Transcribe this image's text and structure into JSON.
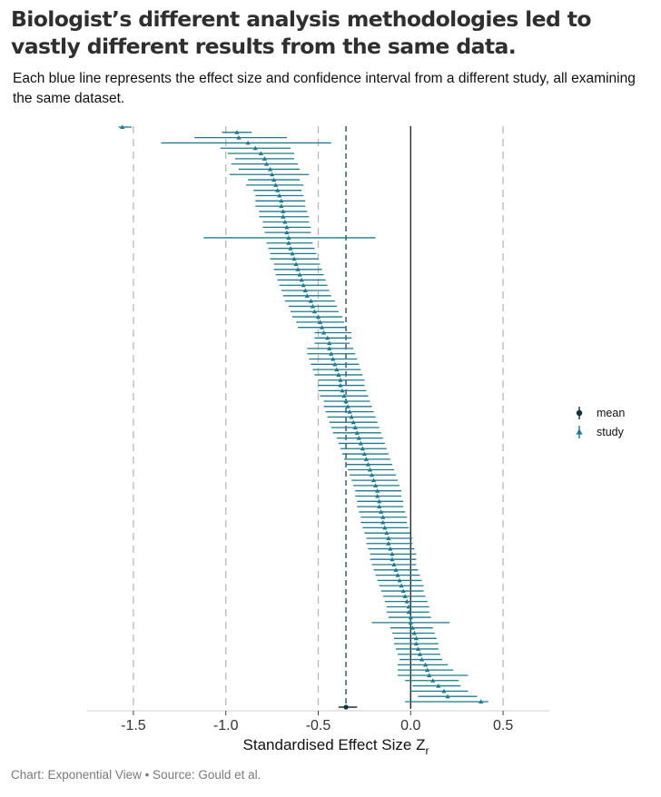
{
  "header": {
    "title": "Biologist’s different analysis methodologies led to vastly different results from the same data.",
    "subtitle": "Each blue line represents the effect size and confidence interval from a different study, all examining the same dataset."
  },
  "footer": {
    "source": "Chart: Exponential View • Source: Gould et al."
  },
  "colors": {
    "study": "#1e7a8c",
    "mean": "#16303a",
    "zero_line": "#2b2b2b",
    "mean_line": "#2e4f7a",
    "grid": "#b8b8b8",
    "axis": "#cfcfcf"
  },
  "chart_data": {
    "type": "forest",
    "xlabel": "Standardised Effect Size Z",
    "xlabel_subscript": "r",
    "xlim": [
      -1.75,
      0.75
    ],
    "x_ticks": [
      -1.5,
      -1.0,
      -0.5,
      0.0,
      0.5
    ],
    "x_tick_labels": [
      "-1.5",
      "-1.0",
      "-0.5",
      "0.0",
      "0.5"
    ],
    "grid": "dashed vertical at tick positions",
    "legend": {
      "position": "right",
      "entries": [
        {
          "key": "mean",
          "label": "mean"
        },
        {
          "key": "study",
          "label": "study"
        }
      ]
    },
    "mean": {
      "estimate": -0.35,
      "lower": -0.39,
      "upper": -0.29
    },
    "reference_lines": {
      "zero": 0.0,
      "mean": -0.35
    },
    "studies": [
      {
        "estimate": -1.56,
        "lower": -1.58,
        "upper": -1.51
      },
      {
        "estimate": -0.94,
        "lower": -1.02,
        "upper": -0.86
      },
      {
        "estimate": -0.93,
        "lower": -1.17,
        "upper": -0.67
      },
      {
        "estimate": -0.88,
        "lower": -1.35,
        "upper": -0.43
      },
      {
        "estimate": -0.84,
        "lower": -1.03,
        "upper": -0.65
      },
      {
        "estimate": -0.81,
        "lower": -0.99,
        "upper": -0.63
      },
      {
        "estimate": -0.79,
        "lower": -0.95,
        "upper": -0.63
      },
      {
        "estimate": -0.78,
        "lower": -0.97,
        "upper": -0.61
      },
      {
        "estimate": -0.76,
        "lower": -0.93,
        "upper": -0.6
      },
      {
        "estimate": -0.75,
        "lower": -0.98,
        "upper": -0.55
      },
      {
        "estimate": -0.74,
        "lower": -0.88,
        "upper": -0.6
      },
      {
        "estimate": -0.73,
        "lower": -0.89,
        "upper": -0.58
      },
      {
        "estimate": -0.72,
        "lower": -0.85,
        "upper": -0.59
      },
      {
        "estimate": -0.71,
        "lower": -0.84,
        "upper": -0.58
      },
      {
        "estimate": -0.7,
        "lower": -0.84,
        "upper": -0.57
      },
      {
        "estimate": -0.7,
        "lower": -0.84,
        "upper": -0.57
      },
      {
        "estimate": -0.69,
        "lower": -0.82,
        "upper": -0.56
      },
      {
        "estimate": -0.69,
        "lower": -0.82,
        "upper": -0.55
      },
      {
        "estimate": -0.68,
        "lower": -0.8,
        "upper": -0.55
      },
      {
        "estimate": -0.67,
        "lower": -0.8,
        "upper": -0.54
      },
      {
        "estimate": -0.67,
        "lower": -0.79,
        "upper": -0.54
      },
      {
        "estimate": -0.66,
        "lower": -1.12,
        "upper": -0.19
      },
      {
        "estimate": -0.66,
        "lower": -0.78,
        "upper": -0.53
      },
      {
        "estimate": -0.65,
        "lower": -0.77,
        "upper": -0.52
      },
      {
        "estimate": -0.64,
        "lower": -0.76,
        "upper": -0.51
      },
      {
        "estimate": -0.63,
        "lower": -0.76,
        "upper": -0.5
      },
      {
        "estimate": -0.62,
        "lower": -0.74,
        "upper": -0.49
      },
      {
        "estimate": -0.61,
        "lower": -0.74,
        "upper": -0.48
      },
      {
        "estimate": -0.6,
        "lower": -0.73,
        "upper": -0.47
      },
      {
        "estimate": -0.59,
        "lower": -0.72,
        "upper": -0.46
      },
      {
        "estimate": -0.58,
        "lower": -0.71,
        "upper": -0.45
      },
      {
        "estimate": -0.57,
        "lower": -0.7,
        "upper": -0.44
      },
      {
        "estimate": -0.56,
        "lower": -0.69,
        "upper": -0.43
      },
      {
        "estimate": -0.54,
        "lower": -0.68,
        "upper": -0.41
      },
      {
        "estimate": -0.53,
        "lower": -0.66,
        "upper": -0.4
      },
      {
        "estimate": -0.52,
        "lower": -0.65,
        "upper": -0.39
      },
      {
        "estimate": -0.5,
        "lower": -0.64,
        "upper": -0.37
      },
      {
        "estimate": -0.49,
        "lower": -0.62,
        "upper": -0.36
      },
      {
        "estimate": -0.48,
        "lower": -0.61,
        "upper": -0.35
      },
      {
        "estimate": -0.47,
        "lower": -0.52,
        "upper": -0.32
      },
      {
        "estimate": -0.45,
        "lower": -0.52,
        "upper": -0.32
      },
      {
        "estimate": -0.44,
        "lower": -0.52,
        "upper": -0.33
      },
      {
        "estimate": -0.44,
        "lower": -0.56,
        "upper": -0.31
      },
      {
        "estimate": -0.43,
        "lower": -0.56,
        "upper": -0.3
      },
      {
        "estimate": -0.42,
        "lower": -0.55,
        "upper": -0.29
      },
      {
        "estimate": -0.41,
        "lower": -0.54,
        "upper": -0.28
      },
      {
        "estimate": -0.4,
        "lower": -0.53,
        "upper": -0.27
      },
      {
        "estimate": -0.39,
        "lower": -0.52,
        "upper": -0.26
      },
      {
        "estimate": -0.38,
        "lower": -0.5,
        "upper": -0.25
      },
      {
        "estimate": -0.38,
        "lower": -0.5,
        "upper": -0.25
      },
      {
        "estimate": -0.37,
        "lower": -0.5,
        "upper": -0.24
      },
      {
        "estimate": -0.36,
        "lower": -0.49,
        "upper": -0.23
      },
      {
        "estimate": -0.35,
        "lower": -0.47,
        "upper": -0.22
      },
      {
        "estimate": -0.34,
        "lower": -0.47,
        "upper": -0.21
      },
      {
        "estimate": -0.33,
        "lower": -0.46,
        "upper": -0.2
      },
      {
        "estimate": -0.32,
        "lower": -0.45,
        "upper": -0.19
      },
      {
        "estimate": -0.31,
        "lower": -0.44,
        "upper": -0.18
      },
      {
        "estimate": -0.3,
        "lower": -0.43,
        "upper": -0.17
      },
      {
        "estimate": -0.29,
        "lower": -0.42,
        "upper": -0.16
      },
      {
        "estimate": -0.28,
        "lower": -0.4,
        "upper": -0.15
      },
      {
        "estimate": -0.27,
        "lower": -0.39,
        "upper": -0.14
      },
      {
        "estimate": -0.26,
        "lower": -0.38,
        "upper": -0.13
      },
      {
        "estimate": -0.25,
        "lower": -0.37,
        "upper": -0.12
      },
      {
        "estimate": -0.24,
        "lower": -0.36,
        "upper": -0.11
      },
      {
        "estimate": -0.23,
        "lower": -0.35,
        "upper": -0.1
      },
      {
        "estimate": -0.22,
        "lower": -0.34,
        "upper": -0.09
      },
      {
        "estimate": -0.21,
        "lower": -0.33,
        "upper": -0.08
      },
      {
        "estimate": -0.2,
        "lower": -0.32,
        "upper": -0.07
      },
      {
        "estimate": -0.19,
        "lower": -0.31,
        "upper": -0.06
      },
      {
        "estimate": -0.18,
        "lower": -0.3,
        "upper": -0.05
      },
      {
        "estimate": -0.18,
        "lower": -0.3,
        "upper": -0.05
      },
      {
        "estimate": -0.17,
        "lower": -0.29,
        "upper": -0.04
      },
      {
        "estimate": -0.17,
        "lower": -0.29,
        "upper": -0.04
      },
      {
        "estimate": -0.16,
        "lower": -0.28,
        "upper": -0.03
      },
      {
        "estimate": -0.15,
        "lower": -0.27,
        "upper": -0.02
      },
      {
        "estimate": -0.15,
        "lower": -0.27,
        "upper": -0.02
      },
      {
        "estimate": -0.14,
        "lower": -0.26,
        "upper": -0.01
      },
      {
        "estimate": -0.13,
        "lower": -0.25,
        "upper": 0.0
      },
      {
        "estimate": -0.12,
        "lower": -0.24,
        "upper": 0.01
      },
      {
        "estimate": -0.12,
        "lower": -0.24,
        "upper": 0.01
      },
      {
        "estimate": -0.11,
        "lower": -0.23,
        "upper": 0.02
      },
      {
        "estimate": -0.1,
        "lower": -0.22,
        "upper": 0.03
      },
      {
        "estimate": -0.1,
        "lower": -0.22,
        "upper": 0.03
      },
      {
        "estimate": -0.09,
        "lower": -0.21,
        "upper": 0.03
      },
      {
        "estimate": -0.08,
        "lower": -0.2,
        "upper": 0.04
      },
      {
        "estimate": -0.07,
        "lower": -0.19,
        "upper": 0.05
      },
      {
        "estimate": -0.06,
        "lower": -0.18,
        "upper": 0.06
      },
      {
        "estimate": -0.05,
        "lower": -0.17,
        "upper": 0.07
      },
      {
        "estimate": -0.04,
        "lower": -0.16,
        "upper": 0.07
      },
      {
        "estimate": -0.03,
        "lower": -0.15,
        "upper": 0.08
      },
      {
        "estimate": -0.02,
        "lower": -0.14,
        "upper": 0.09
      },
      {
        "estimate": -0.01,
        "lower": -0.13,
        "upper": 0.1
      },
      {
        "estimate": -0.01,
        "lower": -0.13,
        "upper": 0.1
      },
      {
        "estimate": 0.0,
        "lower": -0.12,
        "upper": 0.11
      },
      {
        "estimate": 0.0,
        "lower": -0.21,
        "upper": 0.21
      },
      {
        "estimate": 0.01,
        "lower": -0.11,
        "upper": 0.12
      },
      {
        "estimate": 0.02,
        "lower": -0.1,
        "upper": 0.13
      },
      {
        "estimate": 0.03,
        "lower": -0.09,
        "upper": 0.14
      },
      {
        "estimate": 0.03,
        "lower": -0.09,
        "upper": 0.15
      },
      {
        "estimate": 0.04,
        "lower": -0.08,
        "upper": 0.15
      },
      {
        "estimate": 0.05,
        "lower": -0.07,
        "upper": 0.16
      },
      {
        "estimate": 0.06,
        "lower": -0.06,
        "upper": 0.17
      },
      {
        "estimate": 0.08,
        "lower": -0.07,
        "upper": 0.2
      },
      {
        "estimate": 0.09,
        "lower": -0.07,
        "upper": 0.23
      },
      {
        "estimate": 0.1,
        "lower": -0.07,
        "upper": 0.31
      },
      {
        "estimate": 0.12,
        "lower": -0.03,
        "upper": 0.26
      },
      {
        "estimate": 0.15,
        "lower": 0.01,
        "upper": 0.27
      },
      {
        "estimate": 0.18,
        "lower": 0.0,
        "upper": 0.31
      },
      {
        "estimate": 0.2,
        "lower": 0.04,
        "upper": 0.36
      },
      {
        "estimate": 0.38,
        "lower": -0.03,
        "upper": 0.42
      }
    ]
  }
}
